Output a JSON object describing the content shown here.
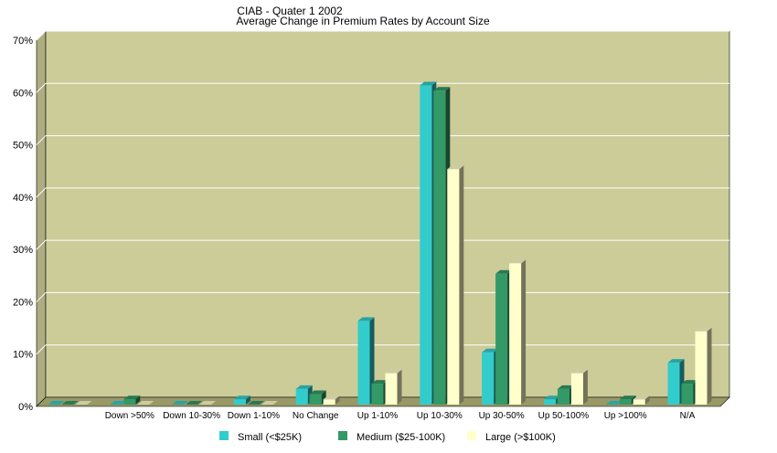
{
  "chart_data": {
    "type": "bar",
    "title": "CIAB - Quater 1 2002",
    "subtitle": "Average Change in Premium Rates by Account Size",
    "xlabel": "",
    "ylabel": "",
    "ylim": [
      0,
      70
    ],
    "y_ticks": [
      "0%",
      "10%",
      "20%",
      "30%",
      "40%",
      "50%",
      "60%",
      "70%"
    ],
    "y_tick_values": [
      0,
      10,
      20,
      30,
      40,
      50,
      60,
      70
    ],
    "grid": true,
    "legend_position": "bottom",
    "categories": [
      "",
      "Down >50%",
      "Down 10-30%",
      "Down 1-10%",
      "No Change",
      "Up 1-10%",
      "Up 10-30%",
      "Up 30-50%",
      "Up 50-100%",
      "Up >100%",
      "N/A"
    ],
    "series": [
      {
        "name": "Small (<$25K)",
        "color": "#33cccc",
        "values": [
          0,
          0,
          0,
          1,
          3,
          16,
          61,
          10,
          1,
          0,
          8
        ]
      },
      {
        "name": "Medium ($25-100K)",
        "color": "#339966",
        "values": [
          0,
          1,
          0,
          0,
          2,
          4,
          60,
          25,
          3,
          1,
          4
        ]
      },
      {
        "name": "Large (>$100K)",
        "color": "#ffffcc",
        "values": [
          0,
          0,
          0,
          0,
          1,
          6,
          45,
          27,
          6,
          1,
          14
        ]
      }
    ],
    "colors": {
      "plot_background": "#cccc99",
      "gridline": "#ffffff",
      "floor": "#999966"
    }
  }
}
